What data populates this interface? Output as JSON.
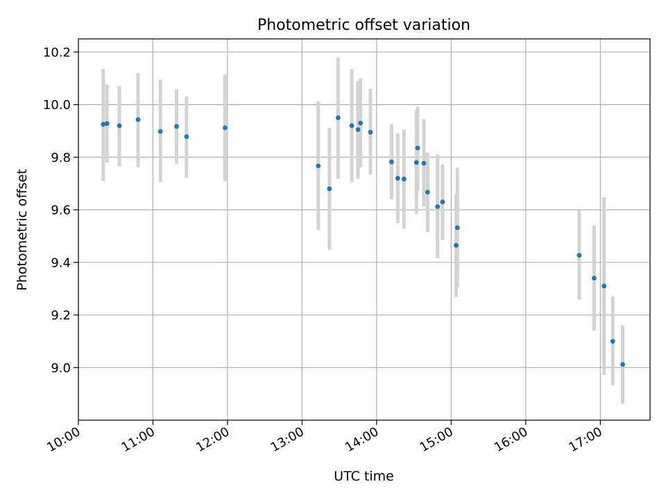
{
  "chart_data": {
    "type": "scatter",
    "title": "Photometric offset variation",
    "xlabel": "UTC time",
    "ylabel": "Photometric offset",
    "xlim": [
      "10:00",
      "17:40"
    ],
    "ylim": [
      8.8,
      10.25
    ],
    "x_ticks": [
      "10:00",
      "11:00",
      "12:00",
      "13:00",
      "14:00",
      "15:00",
      "16:00",
      "17:00"
    ],
    "y_ticks": [
      9.0,
      9.2,
      9.4,
      9.6,
      9.8,
      10.0,
      10.2
    ],
    "y_tick_labels": [
      "9.0",
      "9.2",
      "9.4",
      "9.6",
      "9.8",
      "10.0",
      "10.2"
    ],
    "grid": true,
    "marker_color": "#1f77b4",
    "errorbar_color": "#d3d3d3",
    "points": [
      {
        "x": "10:20",
        "y": 9.925,
        "lo": 9.71,
        "hi": 10.135
      },
      {
        "x": "10:23",
        "y": 9.928,
        "lo": 9.78,
        "hi": 10.075
      },
      {
        "x": "10:33",
        "y": 9.92,
        "lo": 9.765,
        "hi": 10.07
      },
      {
        "x": "10:48",
        "y": 9.943,
        "lo": 9.762,
        "hi": 10.12
      },
      {
        "x": "11:06",
        "y": 9.898,
        "lo": 9.705,
        "hi": 10.095
      },
      {
        "x": "11:19",
        "y": 9.917,
        "lo": 9.775,
        "hi": 10.058
      },
      {
        "x": "11:27",
        "y": 9.878,
        "lo": 9.722,
        "hi": 10.03
      },
      {
        "x": "11:58",
        "y": 9.912,
        "lo": 9.708,
        "hi": 10.115
      },
      {
        "x": "13:13",
        "y": 9.767,
        "lo": 9.522,
        "hi": 10.012
      },
      {
        "x": "13:22",
        "y": 9.68,
        "lo": 9.448,
        "hi": 9.912
      },
      {
        "x": "13:29",
        "y": 9.95,
        "lo": 9.718,
        "hi": 10.18
      },
      {
        "x": "13:40",
        "y": 9.92,
        "lo": 9.705,
        "hi": 10.135
      },
      {
        "x": "13:45",
        "y": 9.905,
        "lo": 9.718,
        "hi": 10.09
      },
      {
        "x": "13:47",
        "y": 9.93,
        "lo": 9.762,
        "hi": 10.1
      },
      {
        "x": "13:55",
        "y": 9.895,
        "lo": 9.735,
        "hi": 10.06
      },
      {
        "x": "14:12",
        "y": 9.782,
        "lo": 9.64,
        "hi": 9.925
      },
      {
        "x": "14:17",
        "y": 9.72,
        "lo": 9.55,
        "hi": 9.89
      },
      {
        "x": "14:22",
        "y": 9.717,
        "lo": 9.528,
        "hi": 9.905
      },
      {
        "x": "14:32",
        "y": 9.78,
        "lo": 9.585,
        "hi": 9.98
      },
      {
        "x": "14:33",
        "y": 9.835,
        "lo": 9.672,
        "hi": 9.993
      },
      {
        "x": "14:38",
        "y": 9.777,
        "lo": 9.612,
        "hi": 9.945
      },
      {
        "x": "14:41",
        "y": 9.667,
        "lo": 9.515,
        "hi": 9.818
      },
      {
        "x": "14:49",
        "y": 9.612,
        "lo": 9.415,
        "hi": 9.81
      },
      {
        "x": "14:53",
        "y": 9.63,
        "lo": 9.485,
        "hi": 9.772
      },
      {
        "x": "15:04",
        "y": 9.465,
        "lo": 9.268,
        "hi": 9.66
      },
      {
        "x": "15:05",
        "y": 9.532,
        "lo": 9.305,
        "hi": 9.76
      },
      {
        "x": "16:43",
        "y": 9.427,
        "lo": 9.258,
        "hi": 9.598
      },
      {
        "x": "16:55",
        "y": 9.34,
        "lo": 9.14,
        "hi": 9.54
      },
      {
        "x": "17:03",
        "y": 9.31,
        "lo": 8.972,
        "hi": 9.648
      },
      {
        "x": "17:10",
        "y": 9.1,
        "lo": 8.932,
        "hi": 9.27
      },
      {
        "x": "17:18",
        "y": 9.012,
        "lo": 8.862,
        "hi": 9.16
      }
    ]
  }
}
